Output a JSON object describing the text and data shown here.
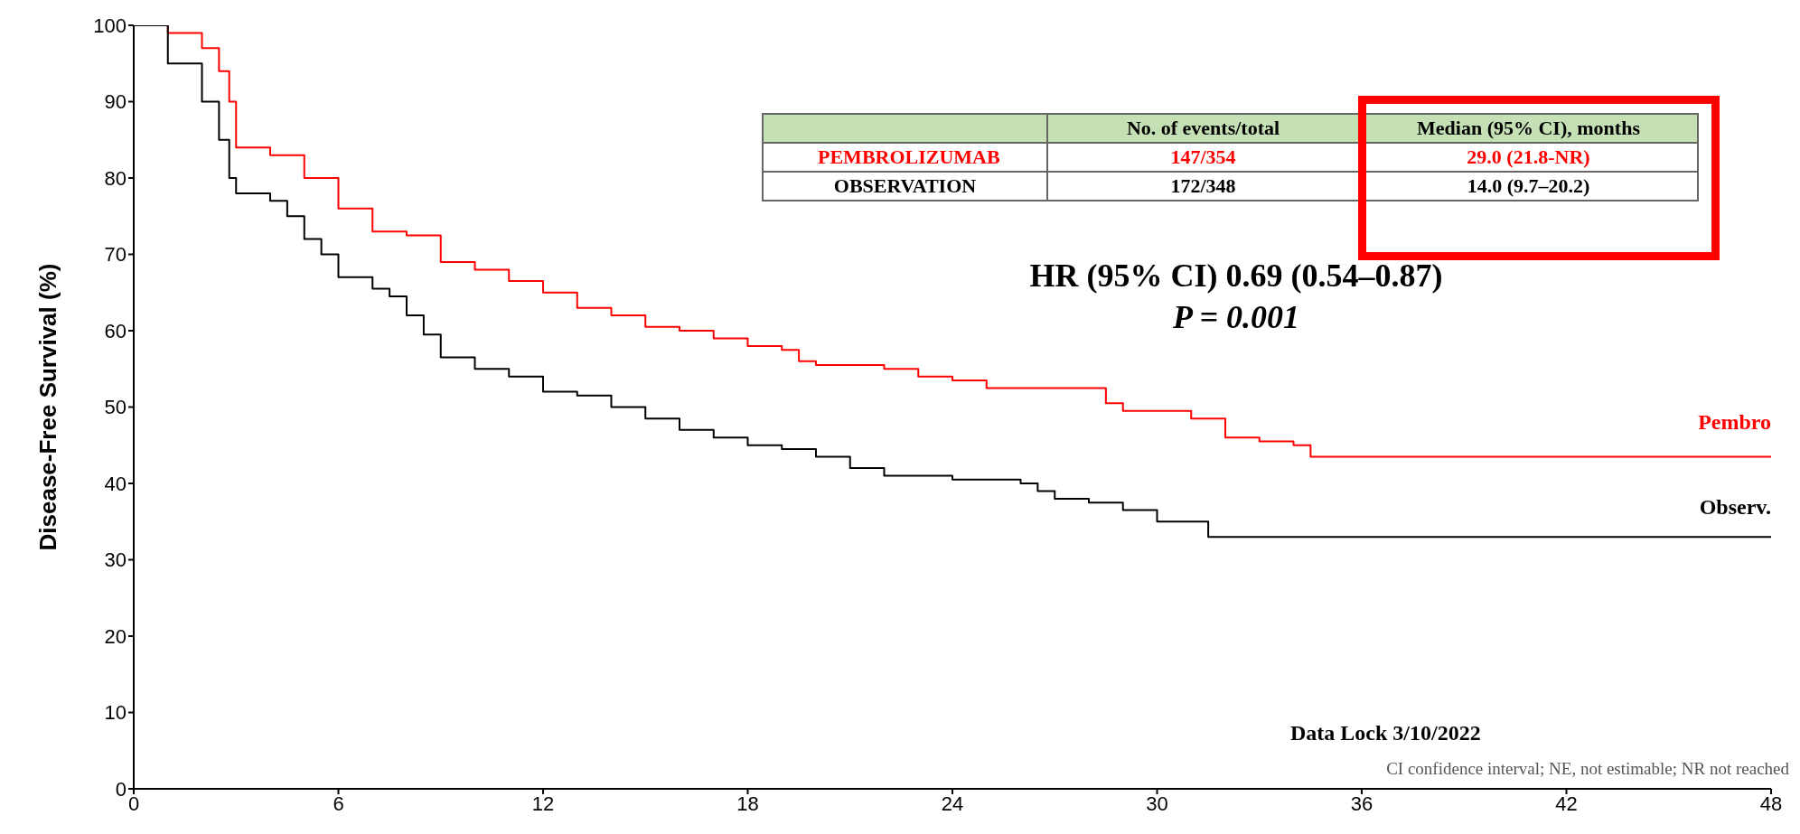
{
  "chart_data": {
    "type": "step",
    "ylabel": "Disease-Free Survival  (%)",
    "xlim": [
      0,
      48
    ],
    "xticks": [
      0,
      6,
      12,
      18,
      24,
      30,
      36,
      42,
      48
    ],
    "ylim": [
      0,
      100
    ],
    "yticks": [
      0,
      10,
      20,
      30,
      40,
      50,
      60,
      70,
      80,
      90,
      100
    ],
    "series": [
      {
        "name": "Pembro",
        "color": "#ff0000",
        "x": [
          0,
          1,
          2,
          2.5,
          2.8,
          3,
          4,
          5,
          6,
          7,
          8,
          9,
          10,
          11,
          12,
          13,
          14,
          15,
          16,
          17,
          18,
          19,
          19.5,
          20,
          22,
          23,
          24,
          25,
          28,
          28.5,
          29,
          31,
          32,
          33,
          34,
          34.5,
          48
        ],
        "values": [
          100,
          99,
          97,
          94,
          90,
          84,
          83,
          80,
          76,
          73,
          72.5,
          69,
          68,
          66.5,
          65,
          63,
          62,
          60.5,
          60,
          59,
          58,
          57.5,
          56,
          55.5,
          55,
          54,
          53.5,
          52.5,
          52.5,
          50.5,
          49.5,
          48.5,
          46,
          45.5,
          45,
          43.5,
          43.5
        ]
      },
      {
        "name": "Observ.",
        "color": "#000000",
        "x": [
          0,
          1,
          2,
          2.5,
          2.8,
          3,
          4,
          4.5,
          5,
          5.5,
          6,
          7,
          7.5,
          8,
          8.5,
          9,
          10,
          11,
          12,
          13,
          14,
          15,
          16,
          17,
          18,
          19,
          20,
          21,
          22,
          24,
          26,
          26.5,
          27,
          28,
          29,
          30,
          31.5,
          48
        ],
        "values": [
          100,
          95,
          90,
          85,
          80,
          78,
          77,
          75,
          72,
          70,
          67,
          65.5,
          64.5,
          62,
          59.5,
          56.5,
          55,
          54,
          52,
          51.5,
          50,
          48.5,
          47,
          46,
          45,
          44.5,
          43.5,
          42,
          41,
          40.5,
          40,
          39,
          38,
          37.5,
          36.5,
          35,
          33,
          33
        ]
      }
    ],
    "annotations": [
      "No. of events/total",
      "Median (95% CI), months",
      "PEMBROLIZUMAB",
      "147/354",
      "29.0 (21.8-NR)",
      "OBSERVATION",
      "172/348",
      "14.0 (9.7–20.2)",
      "HR (95% CI) 0.69 (0.54–0.87)",
      "P = 0.001",
      "Data Lock 3/10/2022",
      "CI confidence interval; NE, not estimable; NR not reached"
    ]
  }
}
